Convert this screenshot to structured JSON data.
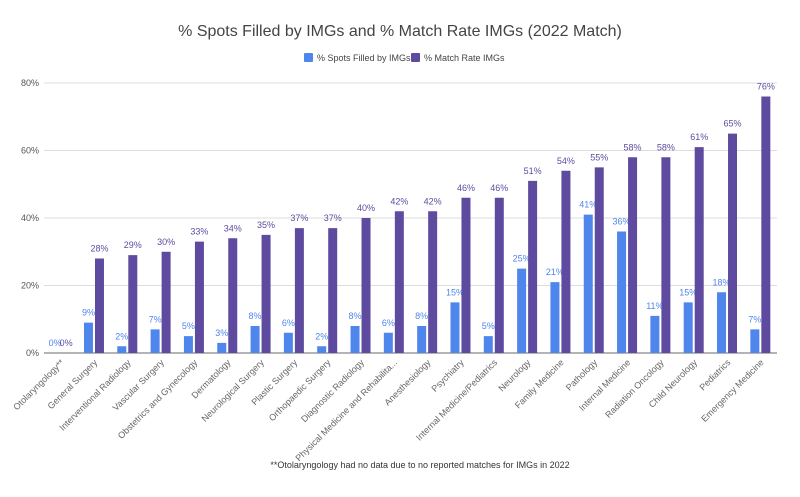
{
  "chart_data": {
    "type": "bar",
    "title": "% Spots Filled by IMGs and % Match Rate IMGs (2022 Match)",
    "footnote": "**Otolaryngology had no data due to no reported matches for IMGs in 2022",
    "xlabel": "",
    "ylabel": "",
    "ylim": [
      0,
      80
    ],
    "yticks": [
      "0%",
      "20%",
      "40%",
      "60%",
      "80%"
    ],
    "grid": true,
    "legend_placement": "top",
    "categories": [
      "Otolaryngology**",
      "General Surgery",
      "Interventional Radiology",
      "Vascular Surgery",
      "Obstetrics and Gynecology",
      "Dermatology",
      "Neurological Surgery",
      "Plastic Surgery",
      "Orthopaedic Surgery",
      "Diagnostic Radiology",
      "Physical Medicine and Rehabilita...",
      "Anesthesiology",
      "Psychiatry",
      "Internal Medicine/Pediatrics",
      "Neurology",
      "Family Medicine",
      "Pathology",
      "Internal Medicine",
      "Radiation Oncology",
      "Child Neurology",
      "Pediatrics",
      "Emergency Medicine"
    ],
    "series": [
      {
        "name": "% Spots Filled by IMGs",
        "color": "#4f86ec",
        "values": [
          0,
          9,
          2,
          7,
          5,
          3,
          8,
          6,
          2,
          8,
          6,
          8,
          15,
          5,
          25,
          21,
          41,
          36,
          11,
          15,
          18,
          7
        ],
        "labels": [
          "0%",
          "9%",
          "2%",
          "7%",
          "5%",
          "3%",
          "8%",
          "6%",
          "2%",
          "8%",
          "6%",
          "8%",
          "15%",
          "5%",
          "25%",
          "21%",
          "41%",
          "36%",
          "11%",
          "15%",
          "18%",
          "7%"
        ]
      },
      {
        "name": "% Match Rate IMGs",
        "color": "#5e4b9f",
        "values": [
          0,
          28,
          29,
          30,
          33,
          34,
          35,
          37,
          37,
          40,
          42,
          42,
          46,
          46,
          51,
          54,
          55,
          58,
          58,
          61,
          65,
          76
        ],
        "labels": [
          "0%",
          "28%",
          "29%",
          "30%",
          "33%",
          "34%",
          "35%",
          "37%",
          "37%",
          "40%",
          "42%",
          "42%",
          "46%",
          "46%",
          "51%",
          "54%",
          "55%",
          "58%",
          "58%",
          "61%",
          "65%",
          "76%"
        ]
      }
    ]
  }
}
